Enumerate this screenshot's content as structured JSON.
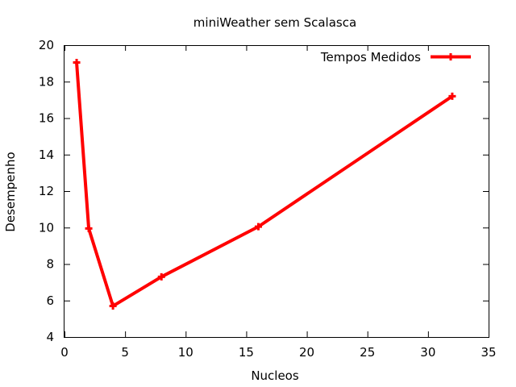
{
  "chart_data": {
    "type": "line",
    "title": "miniWeather sem Scalasca",
    "xlabel": "Nucleos",
    "ylabel": "Desempenho",
    "xlim": [
      0,
      35
    ],
    "ylim": [
      4,
      20
    ],
    "xticks": [
      0,
      5,
      10,
      15,
      20,
      25,
      30,
      35
    ],
    "yticks": [
      4,
      6,
      8,
      10,
      12,
      14,
      16,
      18,
      20
    ],
    "grid": false,
    "legend_position": "top-right",
    "series": [
      {
        "name": "Tempos Medidos",
        "color": "#ff0000",
        "marker": "plus",
        "x": [
          1,
          2,
          4,
          8,
          16,
          32
        ],
        "y": [
          19.05,
          9.95,
          5.7,
          7.3,
          10.05,
          17.2
        ]
      }
    ]
  }
}
